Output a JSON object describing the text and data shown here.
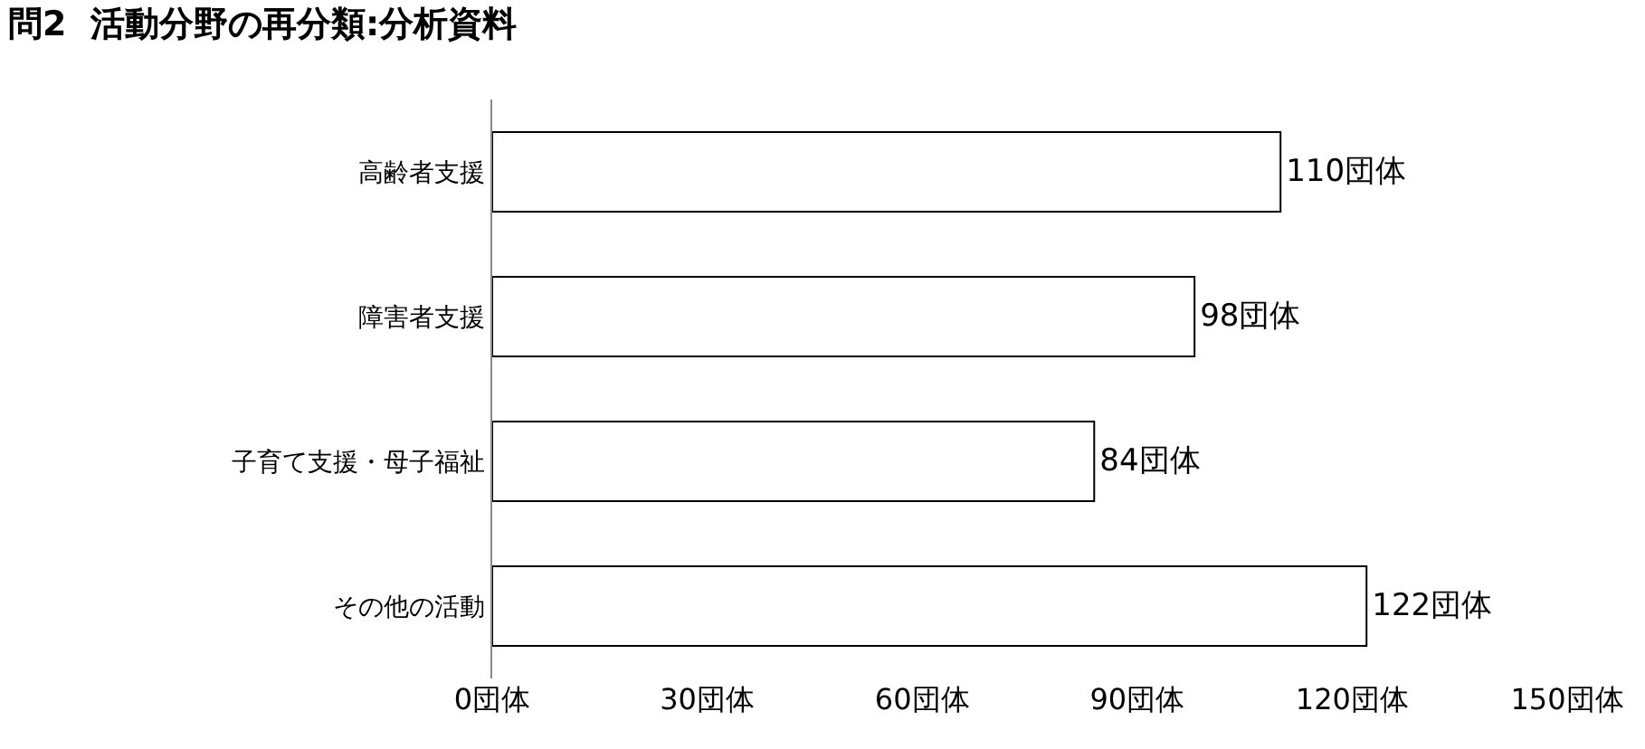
{
  "chart_data": {
    "type": "bar",
    "orientation": "horizontal",
    "title": "問2  活動分野の再分類:分析資料",
    "categories": [
      "高齢者支援",
      "障害者支援",
      "子育て支援・母子福祉",
      "その他の活動"
    ],
    "values": [
      110,
      98,
      84,
      122
    ],
    "value_labels": [
      "110団体",
      "98団体",
      "84団体",
      "122団体"
    ],
    "color": "#ffffff",
    "xlim": [
      0,
      150
    ],
    "xticks": [
      {
        "value": 0,
        "label": "0団体"
      },
      {
        "value": 30,
        "label": "30団体"
      },
      {
        "value": 60,
        "label": "60団体"
      },
      {
        "value": 90,
        "label": "90団体"
      },
      {
        "value": 120,
        "label": "120団体"
      },
      {
        "value": 150,
        "label": "150団体"
      }
    ],
    "grid": false
  }
}
